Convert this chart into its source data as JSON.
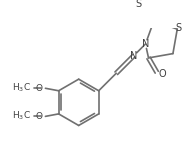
{
  "background_color": "#ffffff",
  "line_color": "#707070",
  "text_color": "#404040",
  "line_width": 1.2,
  "font_size": 6.5,
  "figsize": [
    1.96,
    1.65
  ],
  "dpi": 100,
  "xlim": [
    0,
    196
  ],
  "ylim": [
    0,
    165
  ]
}
